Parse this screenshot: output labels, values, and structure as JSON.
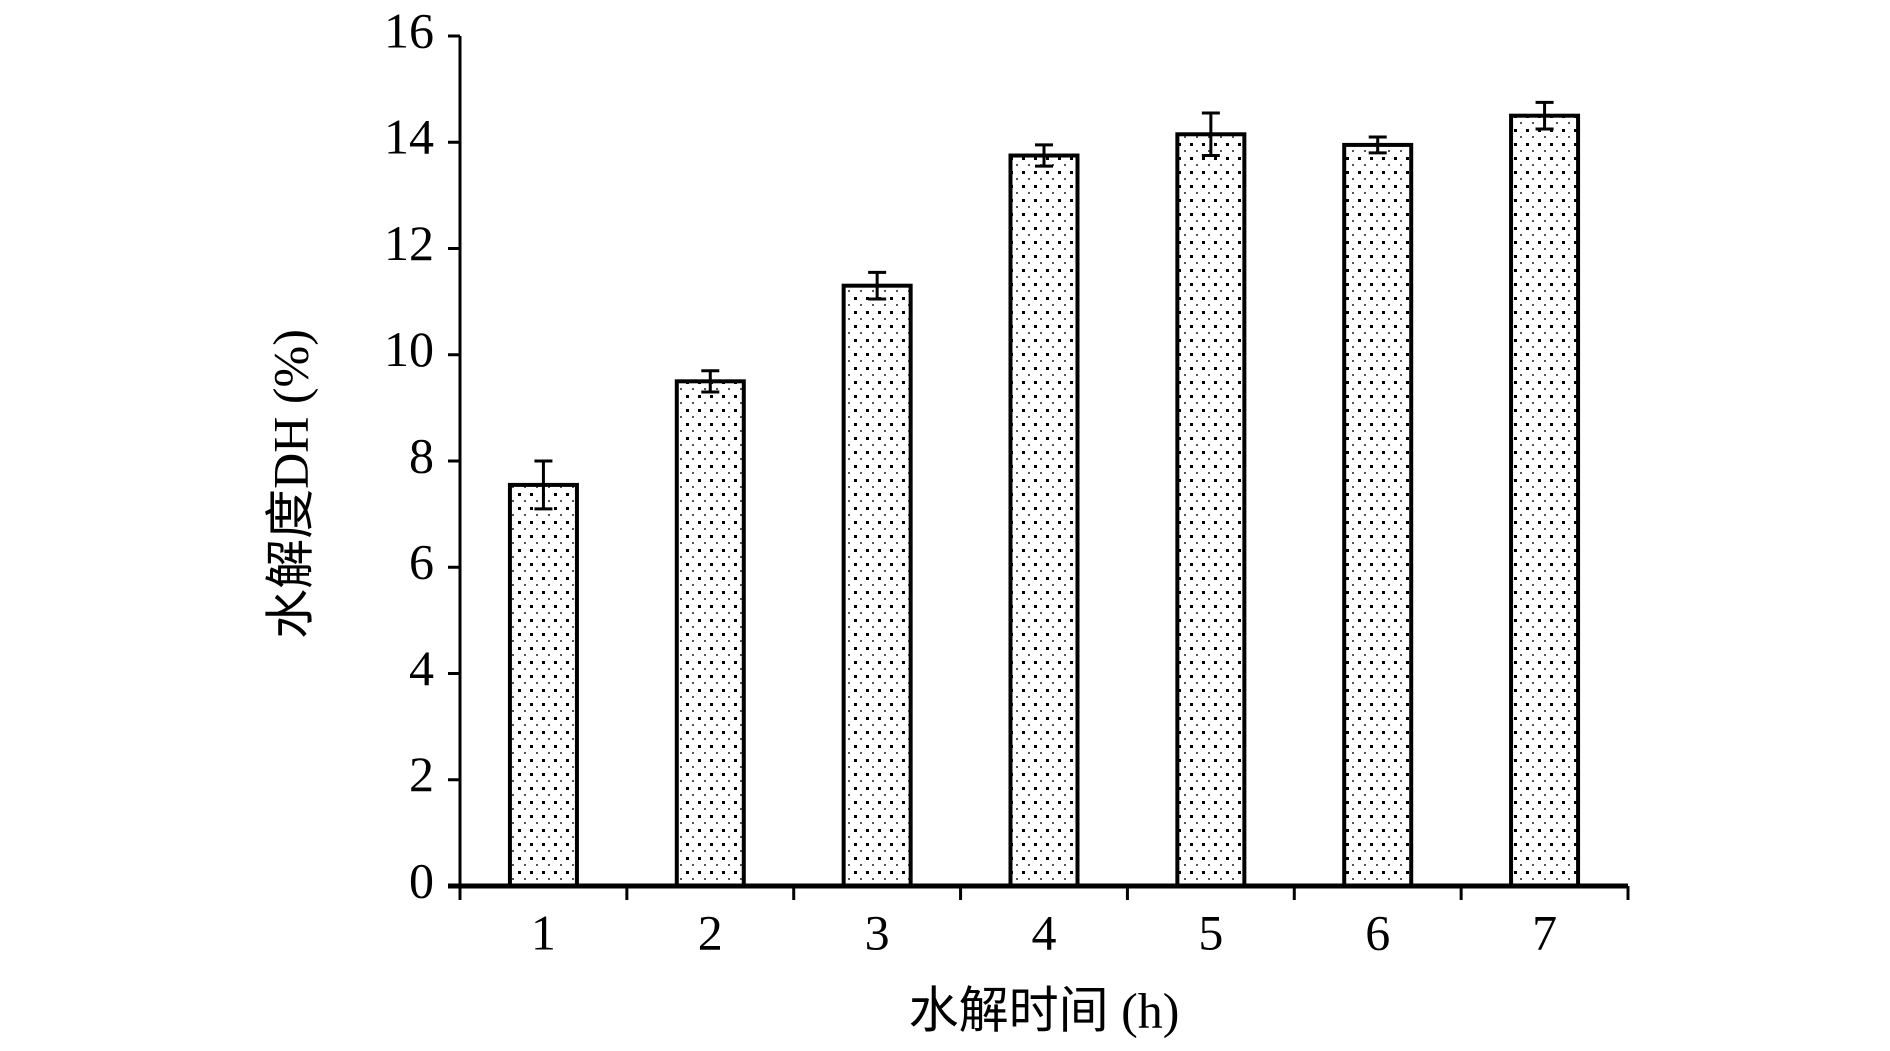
{
  "chart_data": {
    "type": "bar",
    "x_label": "水解时间 (h)",
    "y_label": "水解度DH (%)",
    "categories": [
      "1",
      "2",
      "3",
      "4",
      "5",
      "6",
      "7"
    ],
    "values": [
      7.55,
      9.5,
      11.3,
      13.75,
      14.15,
      13.95,
      14.5
    ],
    "errors": [
      0.45,
      0.2,
      0.25,
      0.2,
      0.4,
      0.15,
      0.25
    ],
    "ylim": [
      0,
      16
    ],
    "yticks": [
      0,
      2,
      4,
      6,
      8,
      10,
      12,
      14,
      16
    ]
  }
}
